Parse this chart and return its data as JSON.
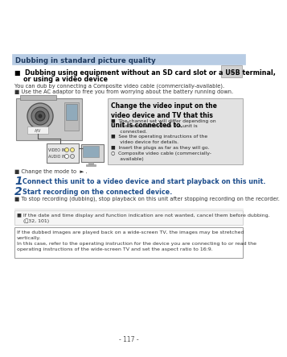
{
  "page_bg": "#ffffff",
  "header_bar_color": "#b8cce4",
  "header_text": "Dubbing in standard picture quality",
  "header_text_color": "#1e3a5f",
  "header_fontsize": 6.2,
  "section_title_line1": "■  Dubbing using equipment without an SD card slot or a USB terminal,",
  "section_title_line2": "    or using a video device",
  "section_title_fontsize": 5.8,
  "body_line1": "You can dub by connecting a Composite video cable (commercially-available).",
  "body_line2": "■ Use the AC adaptor to free you from worrying about the battery running down.",
  "body_fontsize": 4.8,
  "callout_bg": "#e2e2e2",
  "callout_title": "Change the video input on the\nvideo device and TV that this\nunit is connected to.",
  "callout_title_fontsize": 5.5,
  "callout_b1": "■  The channel set will differ depending on\n      the terminal to which the unit is\n      connected.",
  "callout_b2": "■  See the operating instructions of the\n      video device for details.",
  "callout_b3": "■  Insert the plugs as far as they will go.",
  "callout_b4": "○  Composite video cable (commercially-\n      available)",
  "callout_fontsize": 4.3,
  "mode_text": "■ Change the mode to  ► .",
  "step1_num": "1",
  "step1_text": "Connect this unit to a video device and start playback on this unit.",
  "step2_num": "2",
  "step2_text": "Start recording on the connected device.",
  "step_color": "#1e4e8c",
  "step_num_fontsize": 10,
  "step_text_fontsize": 5.8,
  "step_body_fontsize": 4.8,
  "stop_note": "■ To stop recording (dubbing), stop playback on this unit after stopping recording on the recorder.",
  "note1_text": "■ If the date and time display and function indication are not wanted, cancel them before dubbing.\n    (➖32, 101)",
  "bottom_text": "If the dubbed images are played back on a wide-screen TV, the images may be stretched\nvertically.\nIn this case, refer to the operating instruction for the device you are connecting to or read the\noperating instructions of the wide-screen TV and set the aspect ratio to 16:9.",
  "note_fontsize": 4.5,
  "page_num": "- 117 -",
  "page_num_fontsize": 5.5
}
